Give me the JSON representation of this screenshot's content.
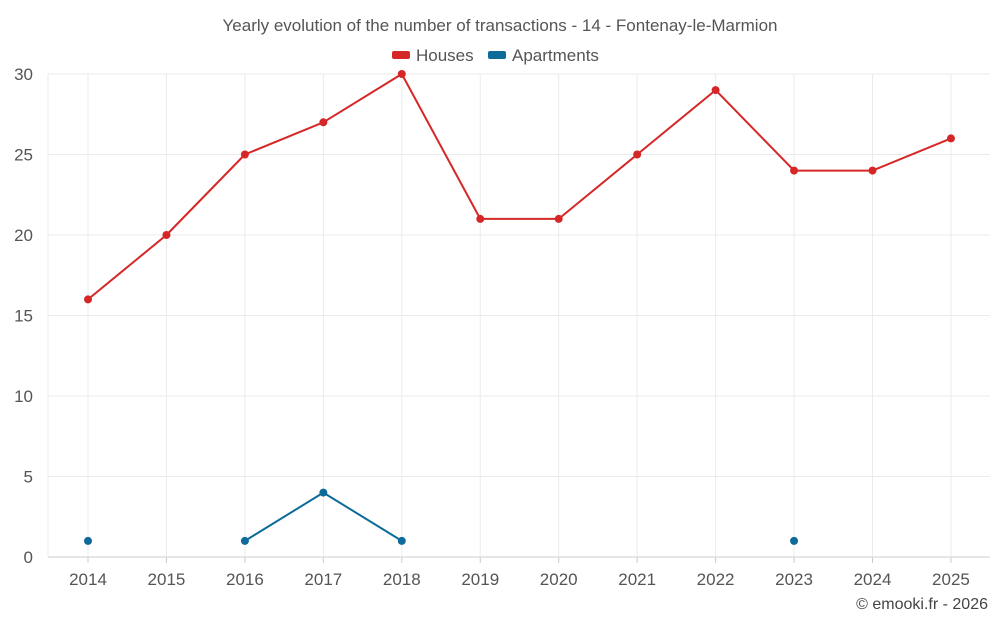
{
  "chart_data": {
    "type": "line",
    "title": "Yearly evolution of the number of transactions - 14 - Fontenay-le-Marmion",
    "categories": [
      "2014",
      "2015",
      "2016",
      "2017",
      "2018",
      "2019",
      "2020",
      "2021",
      "2022",
      "2023",
      "2024",
      "2025"
    ],
    "ylim": [
      0,
      30
    ],
    "yticks": [
      0,
      5,
      10,
      15,
      20,
      25,
      30
    ],
    "grid": true,
    "legend_position": "top-center",
    "series": [
      {
        "name": "Houses",
        "color": "#d62728",
        "values": [
          16,
          20,
          25,
          27,
          30,
          21,
          21,
          25,
          29,
          24,
          24,
          26
        ]
      },
      {
        "name": "Apartments",
        "color": "#0d6b9a",
        "values": [
          1,
          null,
          1,
          4,
          1,
          null,
          null,
          null,
          null,
          1,
          null,
          null
        ]
      }
    ],
    "credit": "© emooki.fr - 2026"
  }
}
